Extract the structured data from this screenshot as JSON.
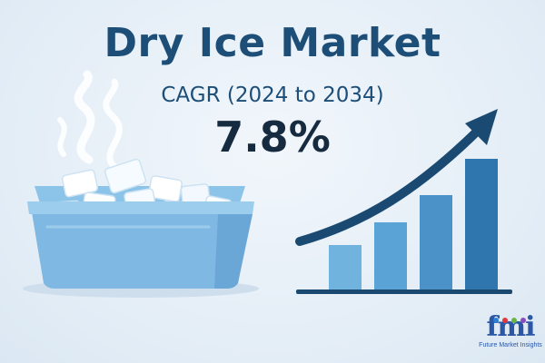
{
  "header": {
    "title": "Dry Ice Market",
    "subtitle": "CAGR (2024 to 2034)",
    "value": "7.8%"
  },
  "logo": {
    "mark": "fmi",
    "name": "Future Market Insights"
  },
  "illustration": {
    "left": "dry-ice-container-icon",
    "right": "growth-bar-chart-icon"
  },
  "colors": {
    "title": "#1d4e78",
    "value": "#162b3f",
    "background": "#e4eef7",
    "bars": [
      "#6fb3de",
      "#5aa3d6",
      "#4a92c8",
      "#2e76ad"
    ],
    "arrow": "#1a4a72",
    "logo": "#2a57a6"
  },
  "chart_data": {
    "type": "bar",
    "values": [
      50,
      75,
      105,
      145
    ],
    "trend": "increasing"
  }
}
